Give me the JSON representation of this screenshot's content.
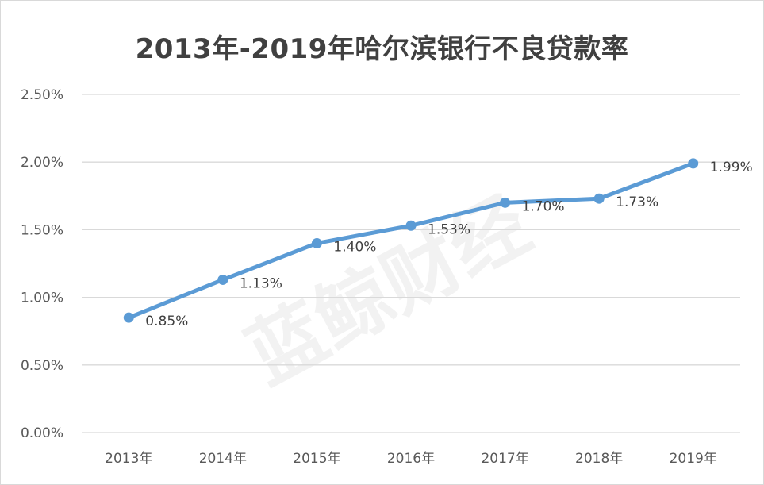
{
  "chart_data": {
    "type": "line",
    "title": "2013年-2019年哈尔滨银行不良贷款率",
    "categories": [
      "2013年",
      "2014年",
      "2015年",
      "2016年",
      "2017年",
      "2018年",
      "2019年"
    ],
    "series": [
      {
        "values": [
          0.85,
          1.13,
          1.4,
          1.53,
          1.7,
          1.73,
          1.99
        ],
        "data_labels": [
          "0.85%",
          "1.13%",
          "1.40%",
          "1.53%",
          "1.70%",
          "1.73%",
          "1.99%"
        ],
        "color": "#5b9bd5"
      }
    ],
    "ylim": [
      0,
      2.5
    ],
    "yticks": [
      0,
      0.5,
      1.0,
      1.5,
      2.0,
      2.5
    ],
    "ytick_labels": [
      "0.00%",
      "0.50%",
      "1.00%",
      "1.50%",
      "2.00%",
      "2.50%"
    ],
    "grid": true,
    "gridline_color": "#d9d9d9",
    "watermark": "蓝鲸财经"
  }
}
